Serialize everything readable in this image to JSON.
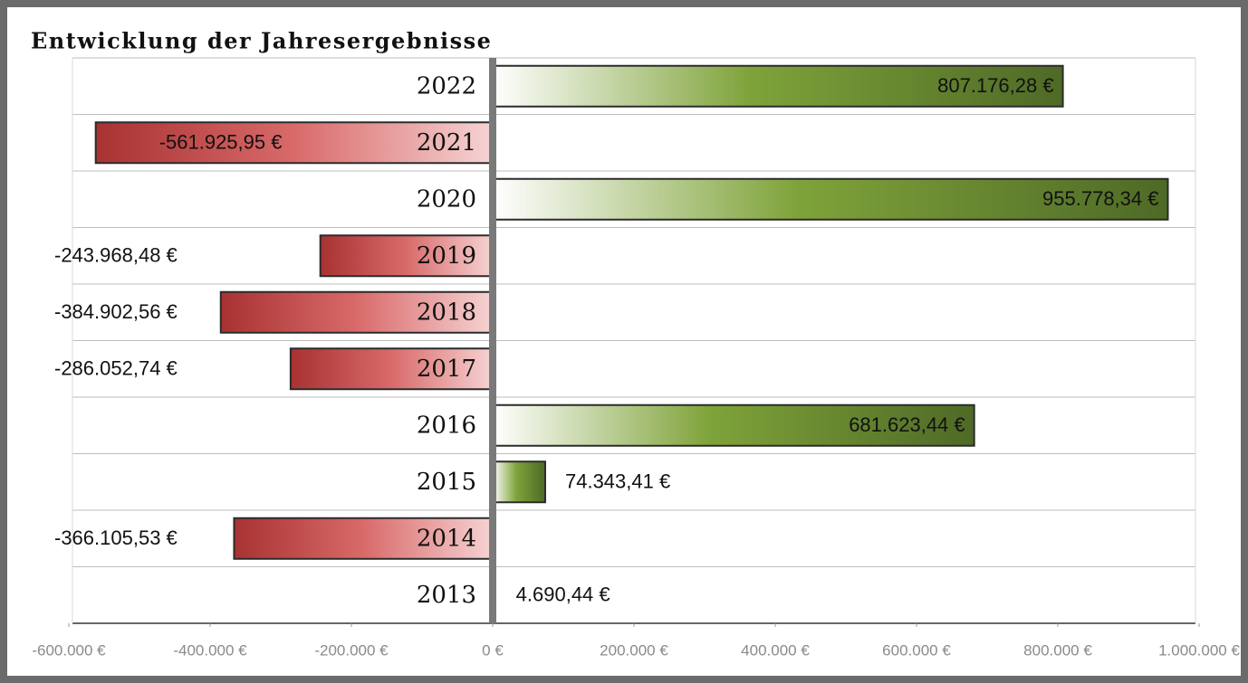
{
  "chart_data": {
    "type": "hbar",
    "title": "Entwicklung der Jahresergebnisse",
    "categories": [
      "2022",
      "2021",
      "2020",
      "2019",
      "2018",
      "2017",
      "2016",
      "2015",
      "2014",
      "2013"
    ],
    "values": [
      807176.28,
      -561925.95,
      955778.34,
      -243968.48,
      -384902.56,
      -286052.74,
      681623.44,
      74343.41,
      -366105.53,
      4690.44
    ],
    "value_labels": [
      "807.176,28 €",
      "-561.925,95 €",
      "955.778,34 €",
      "-243.968,48 €",
      "-384.902,56 €",
      "-286.052,74 €",
      "681.623,44 €",
      "74.343,41 €",
      "-366.105,53 €",
      "4.690,44 €"
    ],
    "colors": {
      "positive": "#4e6a26",
      "negative": "#a83232"
    },
    "xlim": [
      -600000,
      1000000
    ],
    "xticks": [
      {
        "value": -600000,
        "label": "-600.000 €"
      },
      {
        "value": -400000,
        "label": "-400.000 €"
      },
      {
        "value": -200000,
        "label": "-200.000 €"
      },
      {
        "value": 0,
        "label": "0 €"
      },
      {
        "value": 200000,
        "label": "200.000 €"
      },
      {
        "value": 400000,
        "label": "400.000 €"
      },
      {
        "value": 600000,
        "label": "600.000 €"
      },
      {
        "value": 800000,
        "label": "800.000 €"
      },
      {
        "value": 1000000,
        "label": "1.000.000 €"
      }
    ]
  }
}
